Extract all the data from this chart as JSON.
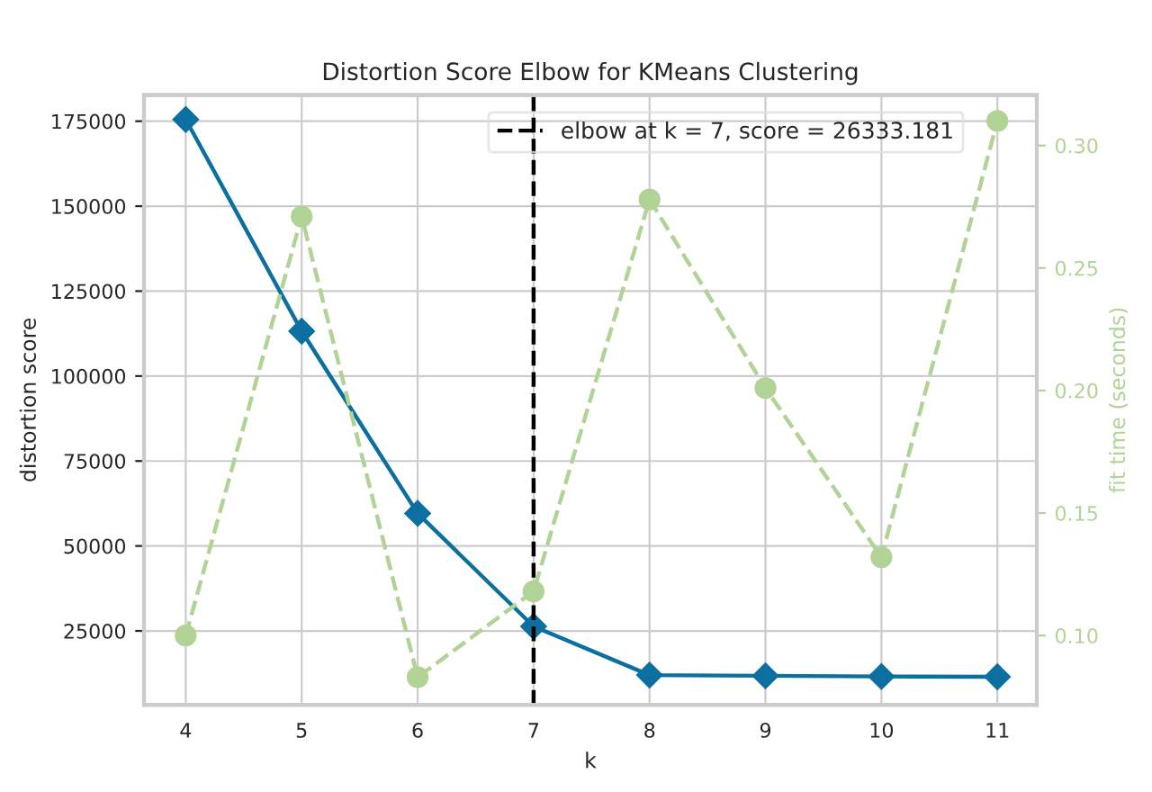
{
  "chart_data": {
    "type": "line",
    "title": "Distortion Score Elbow for KMeans Clustering",
    "xlabel": "k",
    "ylabel": "distortion score",
    "y2label": "fit time (seconds)",
    "x": [
      4,
      5,
      6,
      7,
      8,
      9,
      10,
      11
    ],
    "series": [
      {
        "color": "#0b6f9f",
        "marker": "diamond",
        "line_style": "solid",
        "values": [
          175500,
          113200,
          59600,
          26333.181,
          12000,
          11800,
          11600,
          11500
        ]
      },
      {
        "color": "#b1d396",
        "marker": "circle",
        "line_style": "dashed",
        "axis": "y2",
        "values": [
          0.1,
          0.271,
          0.083,
          0.118,
          0.278,
          0.201,
          0.132,
          0.31
        ]
      }
    ],
    "xlim": [
      3.64,
      11.34
    ],
    "xticks": [
      4,
      5,
      6,
      7,
      8,
      9,
      10,
      11
    ],
    "ylim": [
      3240,
      182700
    ],
    "yticks": [
      25000,
      50000,
      75000,
      100000,
      125000,
      150000,
      175000
    ],
    "y2lim": [
      0.0717,
      0.3206
    ],
    "y2ticks": [
      {
        "value": 0.1,
        "label": "0.10"
      },
      0.15,
      {
        "value": 0.2,
        "label": "0.20"
      },
      0.25,
      {
        "value": 0.3,
        "label": "0.30"
      }
    ],
    "ref_lines": [
      {
        "axis": "x",
        "value": 7,
        "label": "elbow at k = 7, score = 26333.181",
        "color": "#000000",
        "line_style": "dashed"
      }
    ],
    "grid": true,
    "legend": "top right"
  }
}
